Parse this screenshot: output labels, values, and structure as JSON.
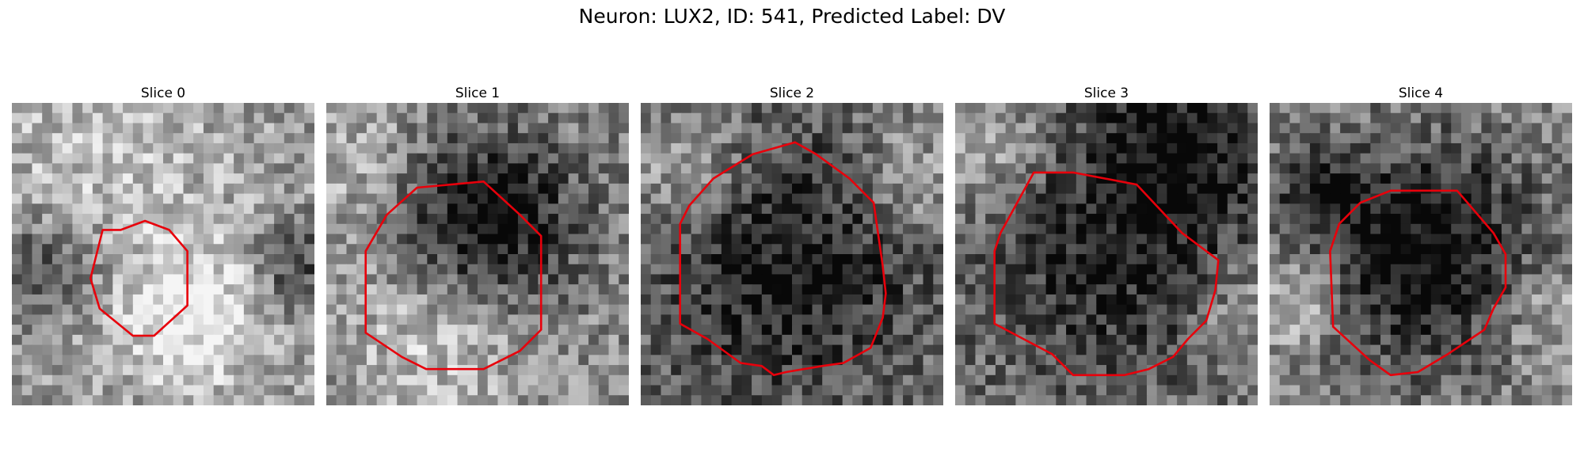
{
  "figure": {
    "title": "Neuron: LUX2, ID: 541, Predicted Label: DV"
  },
  "panels": [
    {
      "title": "Slice 0",
      "contour_color": "#e8000b",
      "image": "grayscale-noise-small-cell"
    },
    {
      "title": "Slice 1",
      "contour_color": "#e8000b",
      "image": "grayscale-noise-dark-blob"
    },
    {
      "title": "Slice 2",
      "contour_color": "#e8000b",
      "image": "grayscale-noise-large-cell"
    },
    {
      "title": "Slice 3",
      "contour_color": "#e8000b",
      "image": "grayscale-noise-large-cell"
    },
    {
      "title": "Slice 4",
      "contour_color": "#e8000b",
      "image": "grayscale-noise-dark-blob"
    }
  ]
}
